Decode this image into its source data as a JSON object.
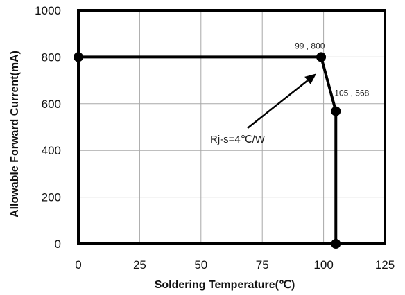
{
  "chart_data": {
    "type": "line",
    "title": "",
    "xlabel": "Soldering Temperature(℃)",
    "ylabel": "Allowable Forward Current(mA)",
    "xlim": [
      0,
      125
    ],
    "ylim": [
      0,
      1000
    ],
    "x_ticks": [
      0,
      25,
      50,
      75,
      100,
      125
    ],
    "y_ticks": [
      0,
      200,
      400,
      600,
      800,
      1000
    ],
    "grid": true,
    "series": [
      {
        "color": "#000000",
        "points": [
          {
            "x": 0,
            "y": 800
          },
          {
            "x": 99,
            "y": 800
          },
          {
            "x": 105,
            "y": 568
          },
          {
            "x": 105,
            "y": 0
          }
        ]
      }
    ],
    "point_labels": [
      {
        "text": "99 , 800",
        "x": 99,
        "y": 800
      },
      {
        "text": "105 , 568",
        "x": 105,
        "y": 568
      }
    ],
    "annotation": {
      "text": "Rj-s=4℃/W",
      "target_x": 99,
      "target_y": 800
    }
  }
}
